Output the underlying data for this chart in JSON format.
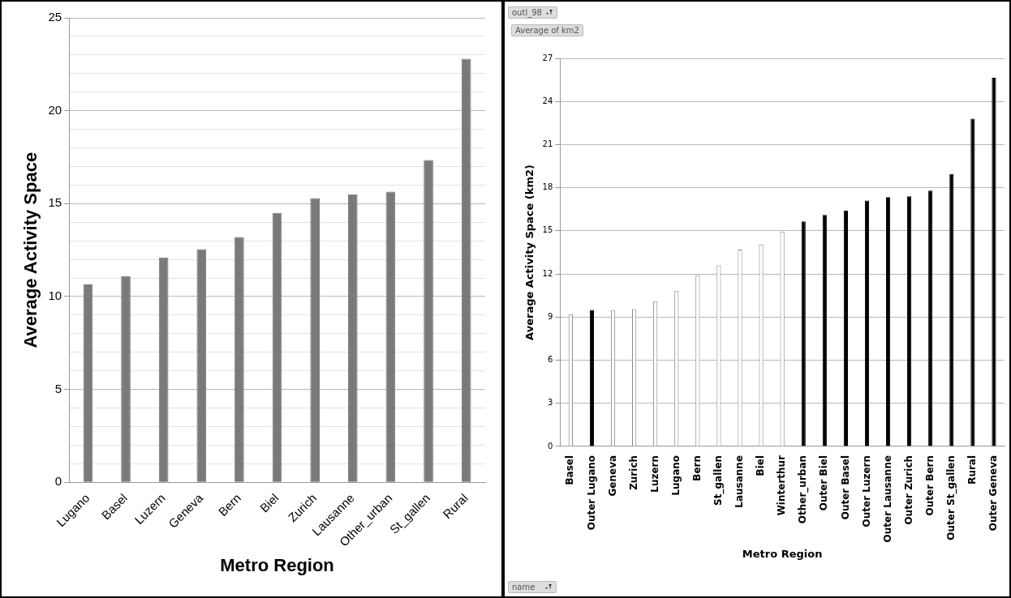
{
  "chart_data": [
    {
      "type": "bar",
      "xlabel": "Metro Region",
      "ylabel": "Average Activity Space",
      "categories": [
        "Lugano",
        "Basel",
        "Luzern",
        "Geneva",
        "Bern",
        "Biel",
        "Zurich",
        "Lausanne",
        "Other_urban",
        "St_gallen",
        "Rural"
      ],
      "values": [
        10.65,
        11.1,
        12.1,
        12.55,
        13.2,
        14.5,
        15.3,
        15.5,
        15.65,
        17.35,
        22.8
      ],
      "color": "#7a7a7d",
      "ylim": [
        0,
        25
      ],
      "yticks": [
        0,
        {
          "value": 1,
          "label": null
        },
        {
          "value": 2,
          "label": null
        },
        {
          "value": 3,
          "label": null
        },
        {
          "value": 4,
          "label": null
        },
        5,
        {
          "value": 6,
          "label": null
        },
        {
          "value": 7,
          "label": null
        },
        {
          "value": 8,
          "label": null
        },
        {
          "value": 9,
          "label": null
        },
        10,
        {
          "value": 11,
          "label": null
        },
        {
          "value": 12,
          "label": null
        },
        {
          "value": 13,
          "label": null
        },
        {
          "value": 14,
          "label": null
        },
        15,
        {
          "value": 16,
          "label": null
        },
        {
          "value": 17,
          "label": null
        },
        {
          "value": 18,
          "label": null
        },
        {
          "value": 19,
          "label": null
        },
        20,
        {
          "value": 21,
          "label": null
        },
        {
          "value": 22,
          "label": null
        },
        {
          "value": 23,
          "label": null
        },
        {
          "value": 24,
          "label": null
        },
        25
      ],
      "grid": "y"
    },
    {
      "type": "bar",
      "xlabel": "Metro Region",
      "ylabel": "Average Activity Space (km2)",
      "categories": [
        "Basel",
        "Outer Lugano",
        "Geneva",
        "Zurich",
        "Luzern",
        "Lugano",
        "Bern",
        "St_gallen",
        "Lausanne",
        "Biel",
        "Winterthur",
        "Other_urban",
        "Outer Biel",
        "Outer Basel",
        "Outer Luzern",
        "Outer Lausanne",
        "Outer Zurich",
        "Outer Bern",
        "Outer St_gallen",
        "Rural",
        "Outer Geneva"
      ],
      "values": [
        9.2,
        9.5,
        9.5,
        9.55,
        10.1,
        10.8,
        11.9,
        12.6,
        13.7,
        14.05,
        14.95,
        15.65,
        16.1,
        16.4,
        17.1,
        17.35,
        17.4,
        17.8,
        18.95,
        22.8,
        25.65
      ],
      "colors": [
        "#ffffff",
        "#000000",
        "#ffffff",
        "#ffffff",
        "#ffffff",
        "#ffffff",
        "#ffffff",
        "#ffffff",
        "#ffffff",
        "#ffffff",
        "#ffffff",
        "#000000",
        "#000000",
        "#000000",
        "#000000",
        "#000000",
        "#000000",
        "#000000",
        "#000000",
        "#000000",
        "#000000"
      ],
      "ylim": [
        0,
        27
      ],
      "yticks": [
        0,
        3,
        6,
        9,
        12,
        15,
        18,
        21,
        24,
        27
      ],
      "grid": "y",
      "annotations": [
        "outl_98",
        "Average of km2",
        "name"
      ]
    }
  ]
}
